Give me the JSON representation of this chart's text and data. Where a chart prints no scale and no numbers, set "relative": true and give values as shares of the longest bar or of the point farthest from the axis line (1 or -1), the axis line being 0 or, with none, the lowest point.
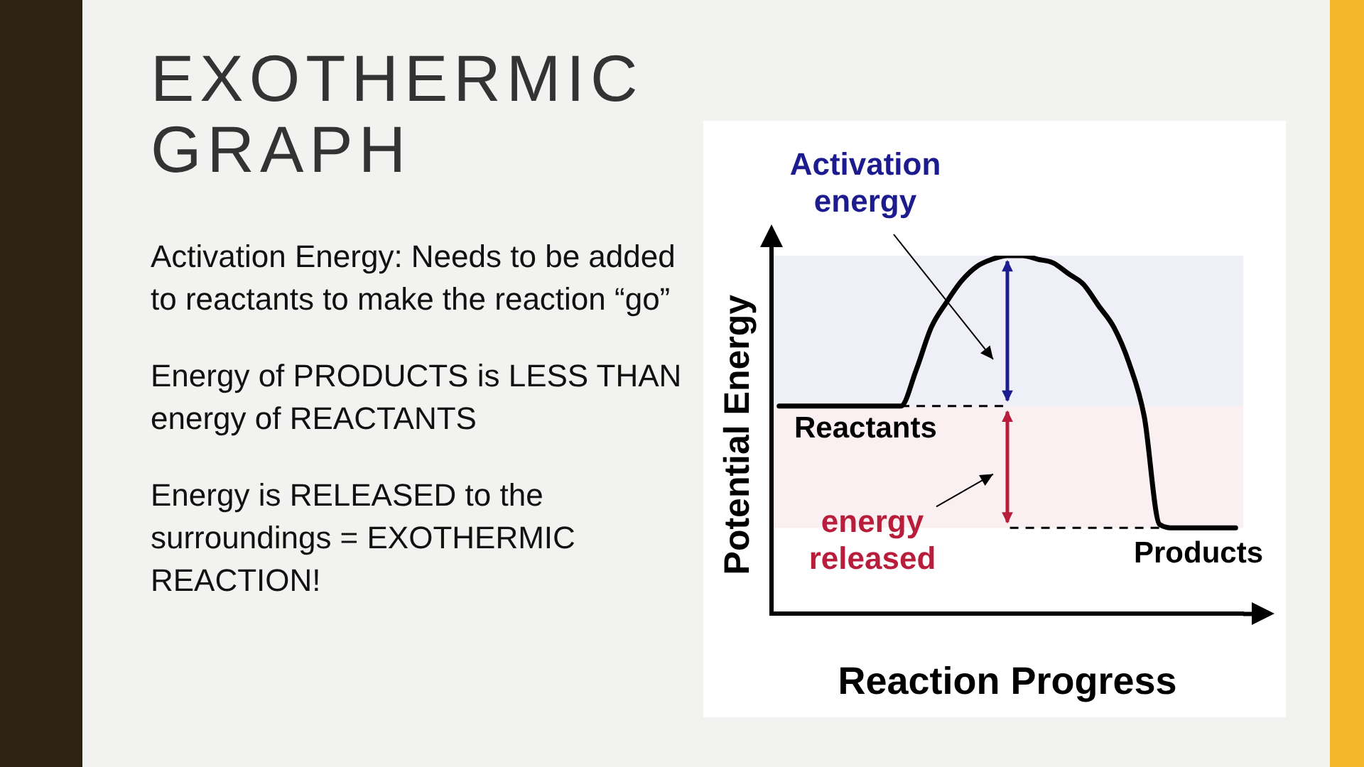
{
  "chart_data": {
    "type": "line",
    "title": "EXOTHERMIC GRAPH",
    "xlabel": "Reaction Progress",
    "ylabel": "Potential Energy",
    "relative": true,
    "categories": [
      null,
      null,
      null,
      null,
      null,
      null,
      null,
      null,
      null,
      null,
      null,
      null,
      null,
      null,
      null,
      null,
      null,
      null,
      null,
      null,
      null,
      null,
      null,
      null,
      null,
      null,
      null,
      null,
      null,
      null,
      null
    ],
    "series": [
      {
        "color": "#000000",
        "values": [
          0.58,
          0.58,
          0.58,
          0.58,
          0.58,
          0.58,
          0.58,
          0.58,
          0.58,
          0.68,
          0.8,
          0.87,
          0.93,
          0.97,
          0.99,
          1,
          1,
          0.99,
          0.98,
          0.95,
          0.92,
          0.86,
          0.8,
          0.7,
          0.55,
          0.25,
          0.24,
          0.24,
          0.24,
          0.24,
          0.24
        ]
      }
    ],
    "ref_lines": [
      {
        "axis": "y",
        "value": 0.58,
        "label": "Reactants",
        "line_style": "dashed"
      },
      {
        "axis": "y",
        "value": 0.24,
        "label": "Products",
        "line_style": "dashed"
      }
    ],
    "bands": [
      {
        "axis": "y",
        "from": 0.58,
        "to": 1,
        "label": "Activation energy",
        "color": "#1c1c8e"
      },
      {
        "axis": "y",
        "from": 0.24,
        "to": 0.58,
        "label": "energy released",
        "color": "#b81e3c"
      }
    ],
    "annotations": [
      "Activation Energy: Needs to be added to reactants to make the reaction “go”",
      "Energy of PRODUCTS is LESS THAN energy of REACTANTS",
      "Energy is RELEASED to the surroundings = EXOTHERMIC REACTION!"
    ],
    "legend": false,
    "grid": false,
    "marker": "none",
    "line_style": "solid"
  }
}
